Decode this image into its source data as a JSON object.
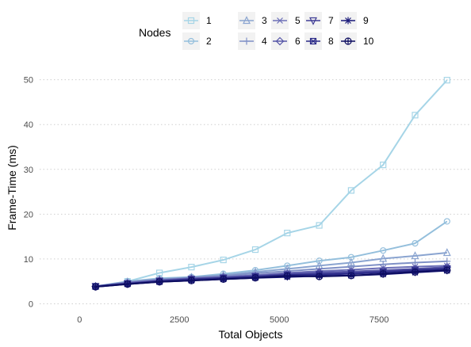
{
  "chart_data": {
    "type": "line",
    "xlabel": "Total Objects",
    "ylabel": "Frame-Time (ms)",
    "xlim": [
      -1000,
      9800
    ],
    "ylim": [
      -1.5,
      54
    ],
    "x_ticks": [
      0,
      2500,
      5000,
      7500
    ],
    "x_tick_labels": [
      "0",
      "2500",
      "5000",
      "7500"
    ],
    "y_ticks": [
      0,
      10,
      20,
      30,
      40,
      50
    ],
    "y_tick_labels": [
      "0",
      "10",
      "20",
      "30",
      "40",
      "50"
    ],
    "grid": "horizontal dotted",
    "legend_title": "Nodes",
    "legend_position": "top",
    "x": [
      400,
      1200,
      2000,
      2800,
      3600,
      4400,
      5200,
      6000,
      6800,
      7600,
      8400,
      9200
    ],
    "series": [
      {
        "name": "1",
        "color": "#a6d5e7",
        "marker": "square",
        "values": [
          3.9,
          5.0,
          6.9,
          8.2,
          9.8,
          12.1,
          15.8,
          17.5,
          25.3,
          31.0,
          42.1,
          49.9
        ]
      },
      {
        "name": "2",
        "color": "#94bfdc",
        "marker": "circle",
        "values": [
          3.9,
          5.0,
          5.7,
          6.0,
          6.7,
          7.5,
          8.5,
          9.6,
          10.4,
          11.9,
          13.5,
          18.4
        ]
      },
      {
        "name": "3",
        "color": "#8aa4d0",
        "marker": "triangle-up",
        "values": [
          3.9,
          4.9,
          5.5,
          5.9,
          6.4,
          7.1,
          7.8,
          8.5,
          9.2,
          10.1,
          10.7,
          11.4
        ]
      },
      {
        "name": "4",
        "color": "#7f90c6",
        "marker": "plus",
        "values": [
          3.9,
          4.8,
          5.4,
          5.8,
          6.2,
          6.8,
          7.3,
          7.8,
          8.3,
          8.8,
          9.2,
          9.5
        ]
      },
      {
        "name": "5",
        "color": "#6c6fb8",
        "marker": "x",
        "values": [
          3.9,
          4.7,
          5.3,
          5.7,
          6.0,
          6.4,
          6.9,
          7.3,
          7.6,
          8.0,
          8.3,
          8.5
        ]
      },
      {
        "name": "6",
        "color": "#5656a8",
        "marker": "diamond",
        "values": [
          3.9,
          4.6,
          5.2,
          5.6,
          5.9,
          6.2,
          6.7,
          7.0,
          7.2,
          7.5,
          7.8,
          8.2
        ]
      },
      {
        "name": "7",
        "color": "#3f3d96",
        "marker": "triangle-down",
        "values": [
          3.9,
          4.5,
          5.1,
          5.5,
          5.8,
          6.1,
          6.5,
          6.7,
          6.9,
          7.2,
          7.6,
          7.9
        ]
      },
      {
        "name": "8",
        "color": "#2b2a88",
        "marker": "square-x",
        "values": [
          3.9,
          4.5,
          5.0,
          5.4,
          5.7,
          6.0,
          6.4,
          6.5,
          6.7,
          7.0,
          7.4,
          7.8
        ]
      },
      {
        "name": "9",
        "color": "#1a1a7a",
        "marker": "asterisk",
        "values": [
          3.8,
          4.4,
          4.9,
          5.2,
          5.5,
          5.8,
          6.0,
          6.2,
          6.3,
          6.6,
          7.0,
          7.4
        ]
      },
      {
        "name": "10",
        "color": "#0d0d60",
        "marker": "circle-plus",
        "values": [
          3.8,
          4.4,
          4.9,
          5.2,
          5.5,
          5.8,
          6.2,
          6.1,
          6.3,
          6.7,
          7.1,
          7.5
        ]
      }
    ]
  }
}
